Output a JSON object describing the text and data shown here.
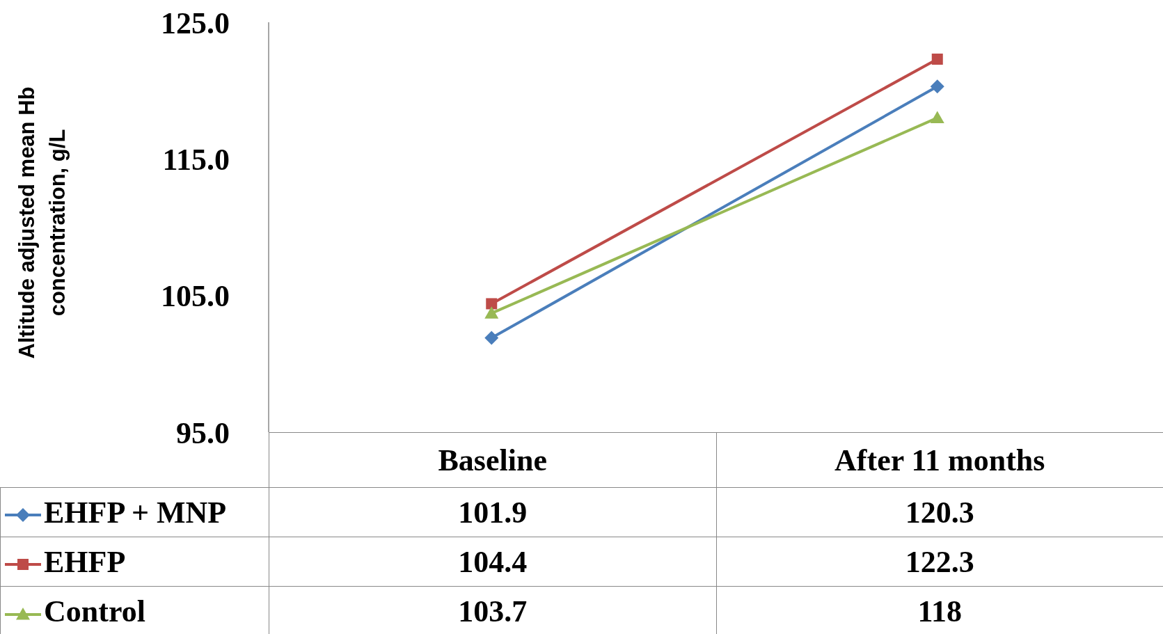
{
  "chart_data": {
    "type": "line",
    "ylabel": "Altitude adjusted mean Hb concentration, g/L",
    "categories": [
      "Baseline",
      "After 11 months"
    ],
    "series": [
      {
        "name": "EHFP + MNP",
        "color": "#4a7ebb",
        "marker": "diamond",
        "values": [
          101.9,
          120.3
        ]
      },
      {
        "name": "EHFP",
        "color": "#be4b48",
        "marker": "square",
        "values": [
          104.4,
          122.3
        ]
      },
      {
        "name": "Control",
        "color": "#98b954",
        "marker": "triangle",
        "values": [
          103.7,
          118
        ]
      }
    ],
    "ylim": [
      95,
      125
    ],
    "yticks": [
      {
        "value": 95,
        "label": "95.0"
      },
      {
        "value": 105,
        "label": "105.0"
      },
      {
        "value": 115,
        "label": "115.0"
      },
      {
        "value": 125,
        "label": "125.0"
      }
    ],
    "legend": "bottom",
    "data_labels": true
  }
}
